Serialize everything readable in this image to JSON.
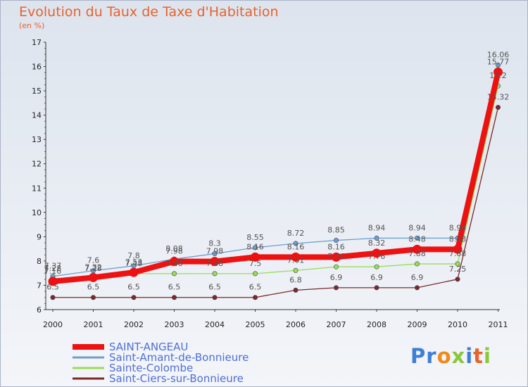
{
  "title": "Evolution du Taux de Taxe d'Habitation",
  "subtitle": "(en %)",
  "brand": "Proxiti",
  "chart_data": {
    "type": "line",
    "x": [
      "2000",
      "2001",
      "2002",
      "2003",
      "2004",
      "2005",
      "2006",
      "2007",
      "2008",
      "2009",
      "2010",
      "2011"
    ],
    "ylim": [
      6,
      17
    ],
    "yticks": [
      "6",
      "7",
      "8",
      "9",
      "10",
      "11",
      "12",
      "13",
      "14",
      "15",
      "16",
      "17"
    ],
    "grid": false,
    "legend_position": "bottom-left",
    "series": [
      {
        "name": "SAINT-ANGEAU",
        "color": "#ee1111",
        "width": 8,
        "dot": 6.5,
        "values": [
          7.16,
          7.32,
          7.53,
          7.98,
          7.98,
          8.16,
          8.16,
          8.16,
          8.32,
          8.48,
          8.48,
          15.77
        ],
        "labels": [
          "7.16",
          "7.32",
          "7.53",
          "7.98",
          "7.98",
          "8.16",
          "8.16",
          "8.16",
          "8.32",
          "8.48",
          "8.48",
          "15.77"
        ]
      },
      {
        "name": "Saint-Amant-de-Bonnieure",
        "color": "#6f9fd0",
        "width": 1.3,
        "dot": 3.2,
        "values": [
          7.37,
          7.6,
          7.8,
          8.08,
          8.3,
          8.55,
          8.72,
          8.85,
          8.94,
          8.94,
          8.94,
          16.06
        ],
        "labels": [
          "7.37",
          "7.6",
          "7.8",
          "8.08",
          "8.3",
          "8.55",
          "8.72",
          "8.85",
          "8.94",
          "8.94",
          "8.94",
          "16.06"
        ]
      },
      {
        "name": "Sainte-Colombe",
        "color": "#99dd55",
        "width": 1.3,
        "dot": 3.2,
        "values": [
          7.28,
          7.28,
          7.48,
          7.48,
          7.48,
          7.48,
          7.61,
          7.76,
          7.76,
          7.88,
          7.88,
          15.2
        ],
        "labels": [
          "7.28",
          "7.28",
          "7.48",
          "7.48",
          "7.48",
          "7.5",
          "7.61",
          "7.76",
          "7.76",
          "7.88",
          "7.88",
          "15.2"
        ]
      },
      {
        "name": "Saint-Ciers-sur-Bonnieure",
        "color": "#7a2a2a",
        "width": 1.3,
        "dot": 3.2,
        "values": [
          6.5,
          6.5,
          6.5,
          6.5,
          6.5,
          6.5,
          6.8,
          6.9,
          6.9,
          6.9,
          7.25,
          14.32
        ],
        "labels": [
          "6.5",
          "6.5",
          "6.5",
          "6.5",
          "6.5",
          "6.5",
          "6.8",
          "6.9",
          "6.9",
          "6.9",
          "7.25",
          "14.32"
        ]
      }
    ]
  }
}
